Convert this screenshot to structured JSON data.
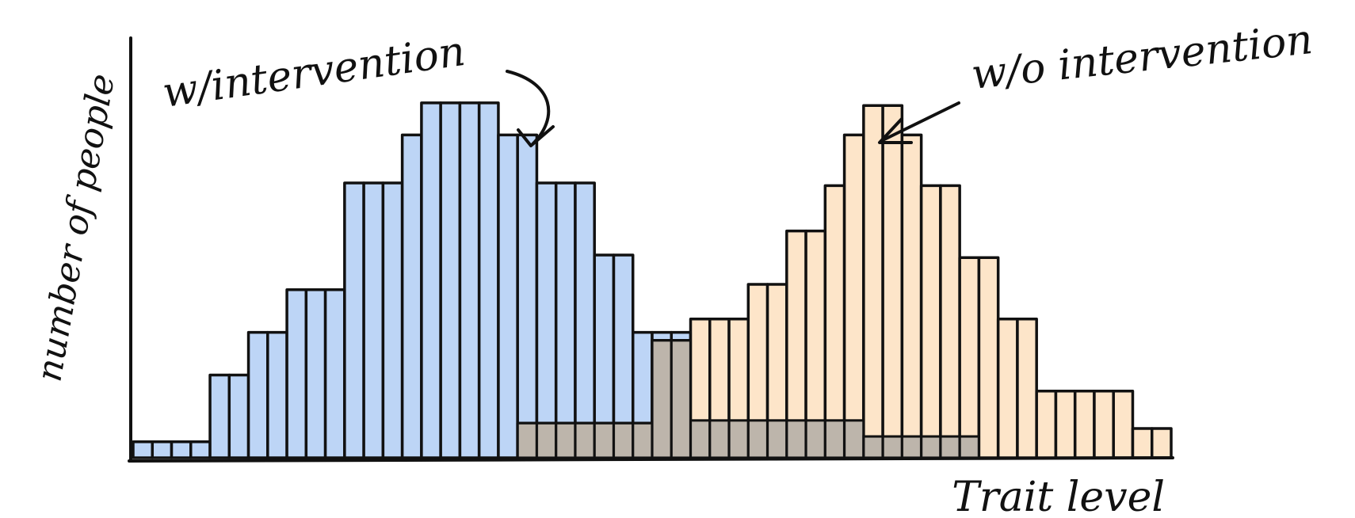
{
  "chart_data": {
    "type": "bar",
    "style": "hand-drawn overlapping histograms",
    "xlabel": "Trait level",
    "ylabel": "number of people",
    "grid": false,
    "legend": "none (series identified by arrow annotations)",
    "annotations": [
      "w/intervention",
      "w/o intervention"
    ],
    "x": [
      1,
      2,
      3,
      4,
      5,
      6,
      7,
      8,
      9,
      10,
      11,
      12,
      13,
      14,
      15,
      16,
      17,
      18,
      19,
      20,
      21,
      22,
      23,
      24,
      25,
      26,
      27,
      28,
      29,
      30,
      31,
      32,
      33,
      34,
      35,
      36,
      37,
      38,
      39,
      40,
      41,
      42,
      43,
      44,
      45,
      46,
      47,
      48,
      49,
      50,
      51,
      52,
      53,
      54
    ],
    "ylim": [
      0,
      13
    ],
    "series": [
      {
        "name": "w/intervention",
        "color": "#b9d3f5",
        "values": [
          0.6,
          0.6,
          0.6,
          0.6,
          3.1,
          3.1,
          4.7,
          4.7,
          6.3,
          6.3,
          6.3,
          10.3,
          10.3,
          10.3,
          12.1,
          13.3,
          13.3,
          13.3,
          13.3,
          12.1,
          12.1,
          10.3,
          10.3,
          10.3,
          7.6,
          7.6,
          4.7,
          4.7,
          4.7,
          1.4,
          1.4,
          1.4,
          1.4,
          1.4,
          1.4,
          1.4,
          1.4,
          1.4,
          0.8,
          0.8,
          0.8,
          0.8,
          0.8,
          0.8,
          0,
          0,
          0,
          0,
          0,
          0,
          0,
          0,
          0,
          0
        ]
      },
      {
        "name": "w/o intervention",
        "color": "#fde2c3",
        "values": [
          0,
          0,
          0,
          0,
          0,
          0,
          0,
          0,
          0,
          0,
          0,
          0,
          0,
          0,
          0,
          0,
          0,
          0,
          0,
          0,
          1.3,
          1.3,
          1.3,
          1.3,
          1.3,
          1.3,
          1.3,
          4.4,
          4.4,
          5.2,
          5.2,
          5.2,
          6.5,
          6.5,
          8.5,
          8.5,
          10.2,
          12.1,
          13.2,
          13.2,
          12.1,
          10.2,
          10.2,
          7.5,
          7.5,
          5.2,
          5.2,
          2.5,
          2.5,
          2.5,
          2.5,
          2.5,
          1.1,
          1.1
        ]
      }
    ]
  }
}
